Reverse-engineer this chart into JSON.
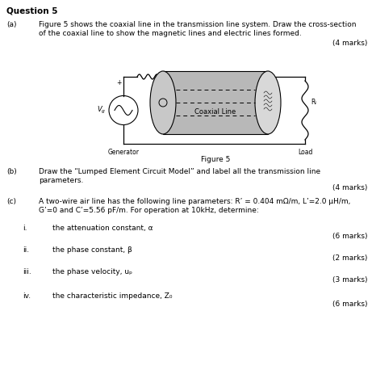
{
  "title": "Question 5",
  "bg_color": "#ffffff",
  "text_color": "#000000",
  "part_a_label": "(a)",
  "part_a_text1": "Figure 5 shows the coaxial line in the transmission line system. Draw the cross-section",
  "part_a_text2": "of the coaxial line to show the magnetic lines and electric lines formed.",
  "part_a_marks": "(4 marks)",
  "figure_caption": "Figure 5",
  "part_b_label": "(b)",
  "part_b_text1": "Draw the “Lumped Element Circuit Model” and label all the transmission line",
  "part_b_text2": "parameters.",
  "part_b_marks": "(4 marks)",
  "part_c_label": "(c)",
  "part_c_text1": "A two-wire air line has the following line parameters: R’ = 0.404 mΩ/m, L’=2.0 μH/m,",
  "part_c_text2": "G’=0 and C’=5.56 pF/m. For operation at 10kHz, determine:",
  "sub_i_label": "i.",
  "sub_i_text": "the attenuation constant, α",
  "sub_i_marks": "(6 marks)",
  "sub_ii_label": "ii.",
  "sub_ii_text": "the phase constant, β",
  "sub_ii_marks": "(2 marks)",
  "sub_iii_label": "iii.",
  "sub_iii_text": "the phase velocity, uₚ",
  "sub_iii_marks": "(3 marks)",
  "sub_iv_label": "iv.",
  "sub_iv_text": "the characteristic impedance, Z₀",
  "sub_iv_marks": "(6 marks)",
  "generator_label": "Generator",
  "coaxial_label": "Coaxial Line",
  "load_label": "Load",
  "rl_label": "Rₗ"
}
